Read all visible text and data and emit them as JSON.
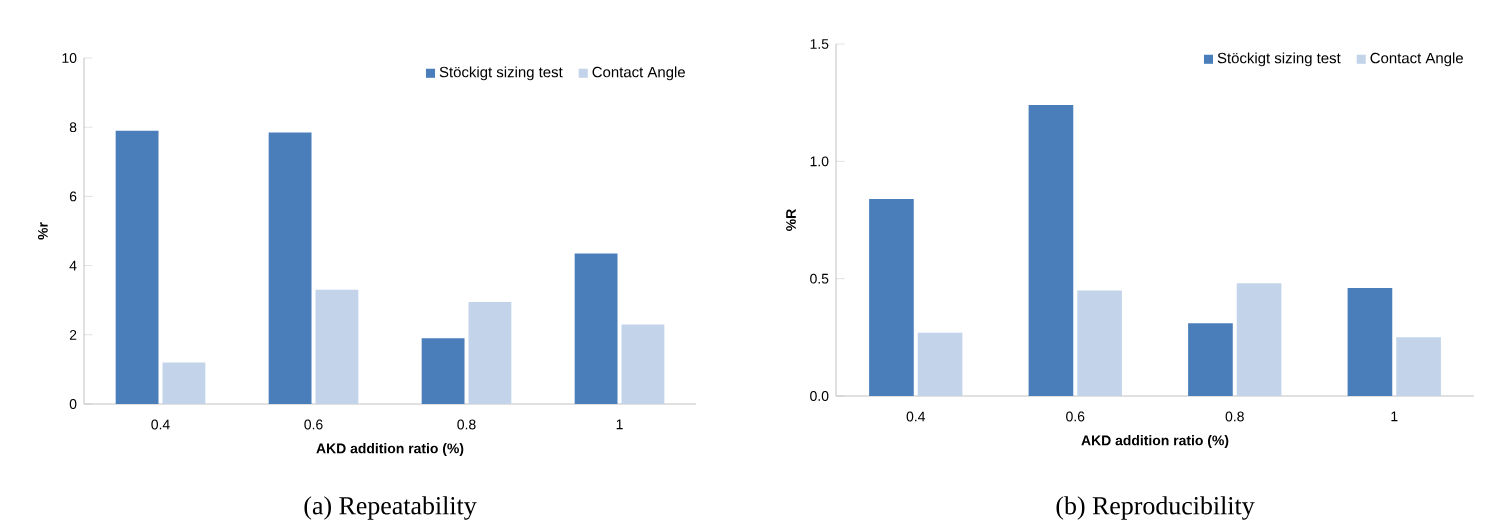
{
  "chart_data": [
    {
      "type": "bar",
      "title": "(a) Repeatability",
      "xlabel": "AKD addition ratio (%)",
      "ylabel": "%r",
      "categories": [
        "0.4",
        "0.6",
        "0.8",
        "1"
      ],
      "series": [
        {
          "name": "Stöckigt sizing test",
          "color": "#4a7ebb",
          "values": [
            7.9,
            7.85,
            1.9,
            4.35
          ]
        },
        {
          "name": "Contact Angle",
          "color": "#c3d4ea",
          "values": [
            1.2,
            3.3,
            2.95,
            2.3
          ]
        }
      ],
      "ylim": [
        0,
        10
      ],
      "yticks": [
        0,
        2,
        4,
        6,
        8,
        10
      ],
      "legend": "top right"
    },
    {
      "type": "bar",
      "title": "(b) Reproducibility",
      "xlabel": "AKD addition ratio (%)",
      "ylabel": "%R",
      "categories": [
        "0.4",
        "0.6",
        "0.8",
        "1"
      ],
      "series": [
        {
          "name": "Stöckigt sizing test",
          "color": "#4a7ebb",
          "values": [
            0.84,
            1.24,
            0.31,
            0.46
          ]
        },
        {
          "name": "Contact Angle",
          "color": "#c3d4ea",
          "values": [
            0.27,
            0.45,
            0.48,
            0.25
          ]
        }
      ],
      "ylim": [
        0,
        1.5
      ],
      "yticks": [
        {
          "value": 0,
          "label": "0.0"
        },
        {
          "value": 0.5,
          "label": "0.5"
        },
        {
          "value": 1.0,
          "label": "1.0"
        },
        {
          "value": 1.5,
          "label": "1.5"
        }
      ],
      "legend": "top right"
    }
  ]
}
